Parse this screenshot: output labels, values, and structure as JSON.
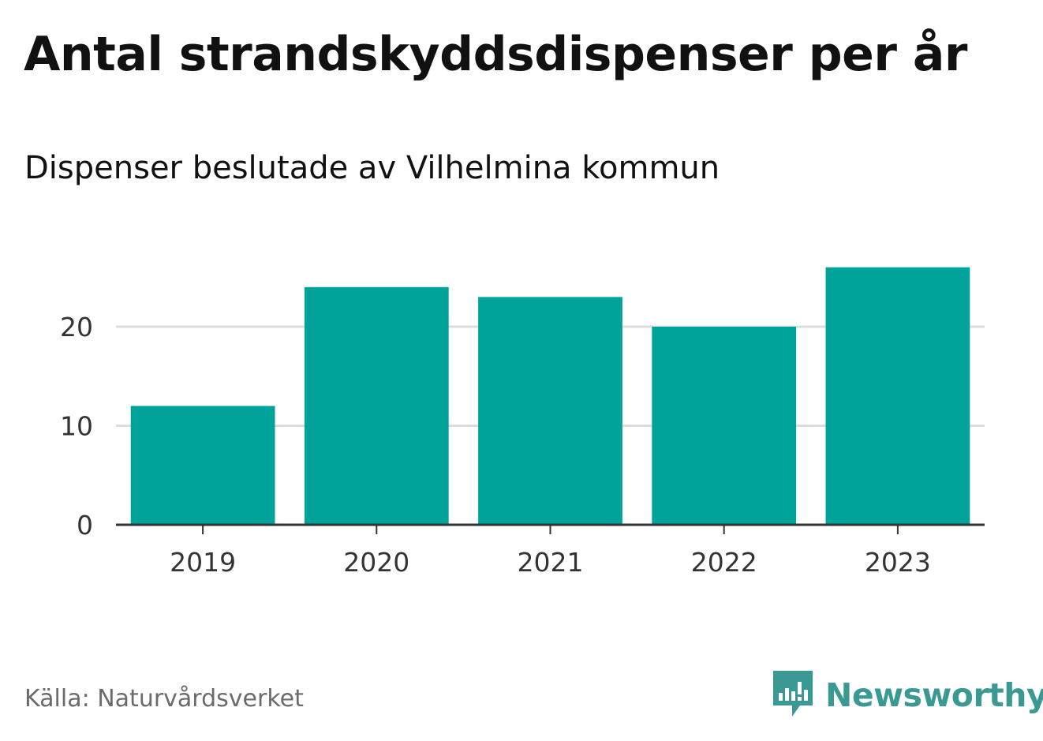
{
  "header": {
    "title": "Antal strandskyddsdispenser per år",
    "subtitle": "Dispenser beslutade av Vilhelmina kommun"
  },
  "footer": {
    "source": "Källa: Naturvårdsverket",
    "brand_name": "Newsworthy",
    "brand_icon": "newsworthy-logo-icon"
  },
  "colors": {
    "bar": "#00a39a",
    "brand": "#3a9992",
    "gridline": "#dcdcdc",
    "axis": "#333333"
  },
  "chart_data": {
    "type": "bar",
    "title": "Antal strandskyddsdispenser per år",
    "subtitle": "Dispenser beslutade av Vilhelmina kommun",
    "xlabel": "",
    "ylabel": "",
    "categories": [
      "2019",
      "2020",
      "2021",
      "2022",
      "2023"
    ],
    "values": [
      12,
      24,
      23,
      20,
      26
    ],
    "yticks": [
      0,
      10,
      20
    ],
    "ylim": [
      0,
      26
    ],
    "grid": true,
    "legend": "none"
  }
}
